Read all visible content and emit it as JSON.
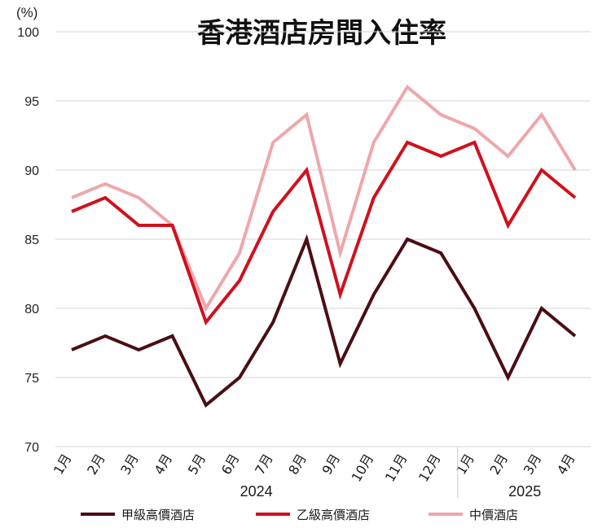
{
  "chart_data": {
    "type": "line",
    "title": "香港酒店房間入住率",
    "unit": "(%)",
    "ylim": [
      70,
      100
    ],
    "yticks": [
      "70",
      "75",
      "80",
      "85",
      "90",
      "95",
      "100"
    ],
    "grid": "horizontal",
    "legend_position": "bottom",
    "categories": [
      "1月",
      "2月",
      "3月",
      "4月",
      "5月",
      "6月",
      "7月",
      "8月",
      "9月",
      "10月",
      "11月",
      "12月",
      "1月",
      "2月",
      "3月",
      "4月"
    ],
    "year_groups": [
      {
        "label": "2024",
        "count": 12
      },
      {
        "label": "2025",
        "count": 4
      }
    ],
    "series": [
      {
        "name": "甲級高價酒店",
        "color": "#4a0e14",
        "values": [
          77,
          78,
          77,
          78,
          73,
          75,
          79,
          85,
          76,
          81,
          85,
          84,
          80,
          75,
          80,
          78
        ]
      },
      {
        "name": "乙級高價酒店",
        "color": "#d0101e",
        "values": [
          87,
          88,
          86,
          86,
          79,
          82,
          87,
          90,
          81,
          88,
          92,
          91,
          92,
          86,
          90,
          88
        ]
      },
      {
        "name": "中價酒店",
        "color": "#eea7ab",
        "values": [
          88,
          89,
          88,
          86,
          80,
          84,
          92,
          94,
          84,
          92,
          96,
          94,
          93,
          91,
          94,
          90
        ]
      }
    ]
  }
}
